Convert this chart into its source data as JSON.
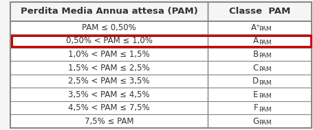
{
  "header": [
    "Perdita Media Annua attesa (PAM)",
    "Classe  PAM"
  ],
  "rows": [
    [
      "PAM ≤ 0,50%",
      "A⁺"
    ],
    [
      "0,50% < PAM ≤ 1,0%",
      "A"
    ],
    [
      "1,0% < PAM ≤ 1,5%",
      "B"
    ],
    [
      "1,5% < PAM ≤ 2,5%",
      "C"
    ],
    [
      "2,5% < PAM ≤ 3,5%",
      "D"
    ],
    [
      "3,5% < PAM ≤ 4,5%",
      "E"
    ],
    [
      "4,5% < PAM ≤ 7,5%",
      "F"
    ],
    [
      "7,5% ≤ PAM",
      "G"
    ]
  ],
  "class_labels": [
    "A⁺",
    "A",
    "B",
    "C",
    "D",
    "E",
    "F",
    "G"
  ],
  "highlight_row": 1,
  "highlight_color": "#cc0000",
  "border_color": "#888888",
  "text_color": "#333333",
  "header_fontsize": 9.5,
  "row_fontsize": 8.5,
  "sub_fontsize": 6.5,
  "col_split": 0.655,
  "bg_color": "#f5f5f5",
  "header_bg": "#e8e8e8"
}
